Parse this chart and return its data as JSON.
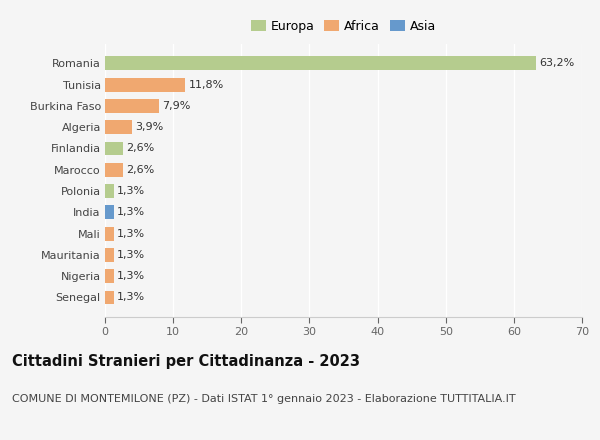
{
  "countries": [
    "Romania",
    "Tunisia",
    "Burkina Faso",
    "Algeria",
    "Finlandia",
    "Marocco",
    "Polonia",
    "India",
    "Mali",
    "Mauritania",
    "Nigeria",
    "Senegal"
  ],
  "values": [
    63.2,
    11.8,
    7.9,
    3.9,
    2.6,
    2.6,
    1.3,
    1.3,
    1.3,
    1.3,
    1.3,
    1.3
  ],
  "labels": [
    "63,2%",
    "11,8%",
    "7,9%",
    "3,9%",
    "2,6%",
    "2,6%",
    "1,3%",
    "1,3%",
    "1,3%",
    "1,3%",
    "1,3%",
    "1,3%"
  ],
  "continents": [
    "Europa",
    "Africa",
    "Africa",
    "Africa",
    "Europa",
    "Africa",
    "Europa",
    "Asia",
    "Africa",
    "Africa",
    "Africa",
    "Africa"
  ],
  "colors": {
    "Europa": "#b5cc8e",
    "Africa": "#f0a870",
    "Asia": "#6699cc"
  },
  "legend_labels": [
    "Europa",
    "Africa",
    "Asia"
  ],
  "legend_colors": [
    "#b5cc8e",
    "#f0a870",
    "#6699cc"
  ],
  "title": "Cittadini Stranieri per Cittadinanza - 2023",
  "subtitle": "COMUNE DI MONTEMILONE (PZ) - Dati ISTAT 1° gennaio 2023 - Elaborazione TUTTITALIA.IT",
  "xlim": [
    0,
    70
  ],
  "xticks": [
    0,
    10,
    20,
    30,
    40,
    50,
    60,
    70
  ],
  "background_color": "#f5f5f5",
  "bar_height": 0.65,
  "title_fontsize": 10.5,
  "subtitle_fontsize": 8,
  "label_fontsize": 8,
  "tick_fontsize": 8,
  "legend_fontsize": 9
}
